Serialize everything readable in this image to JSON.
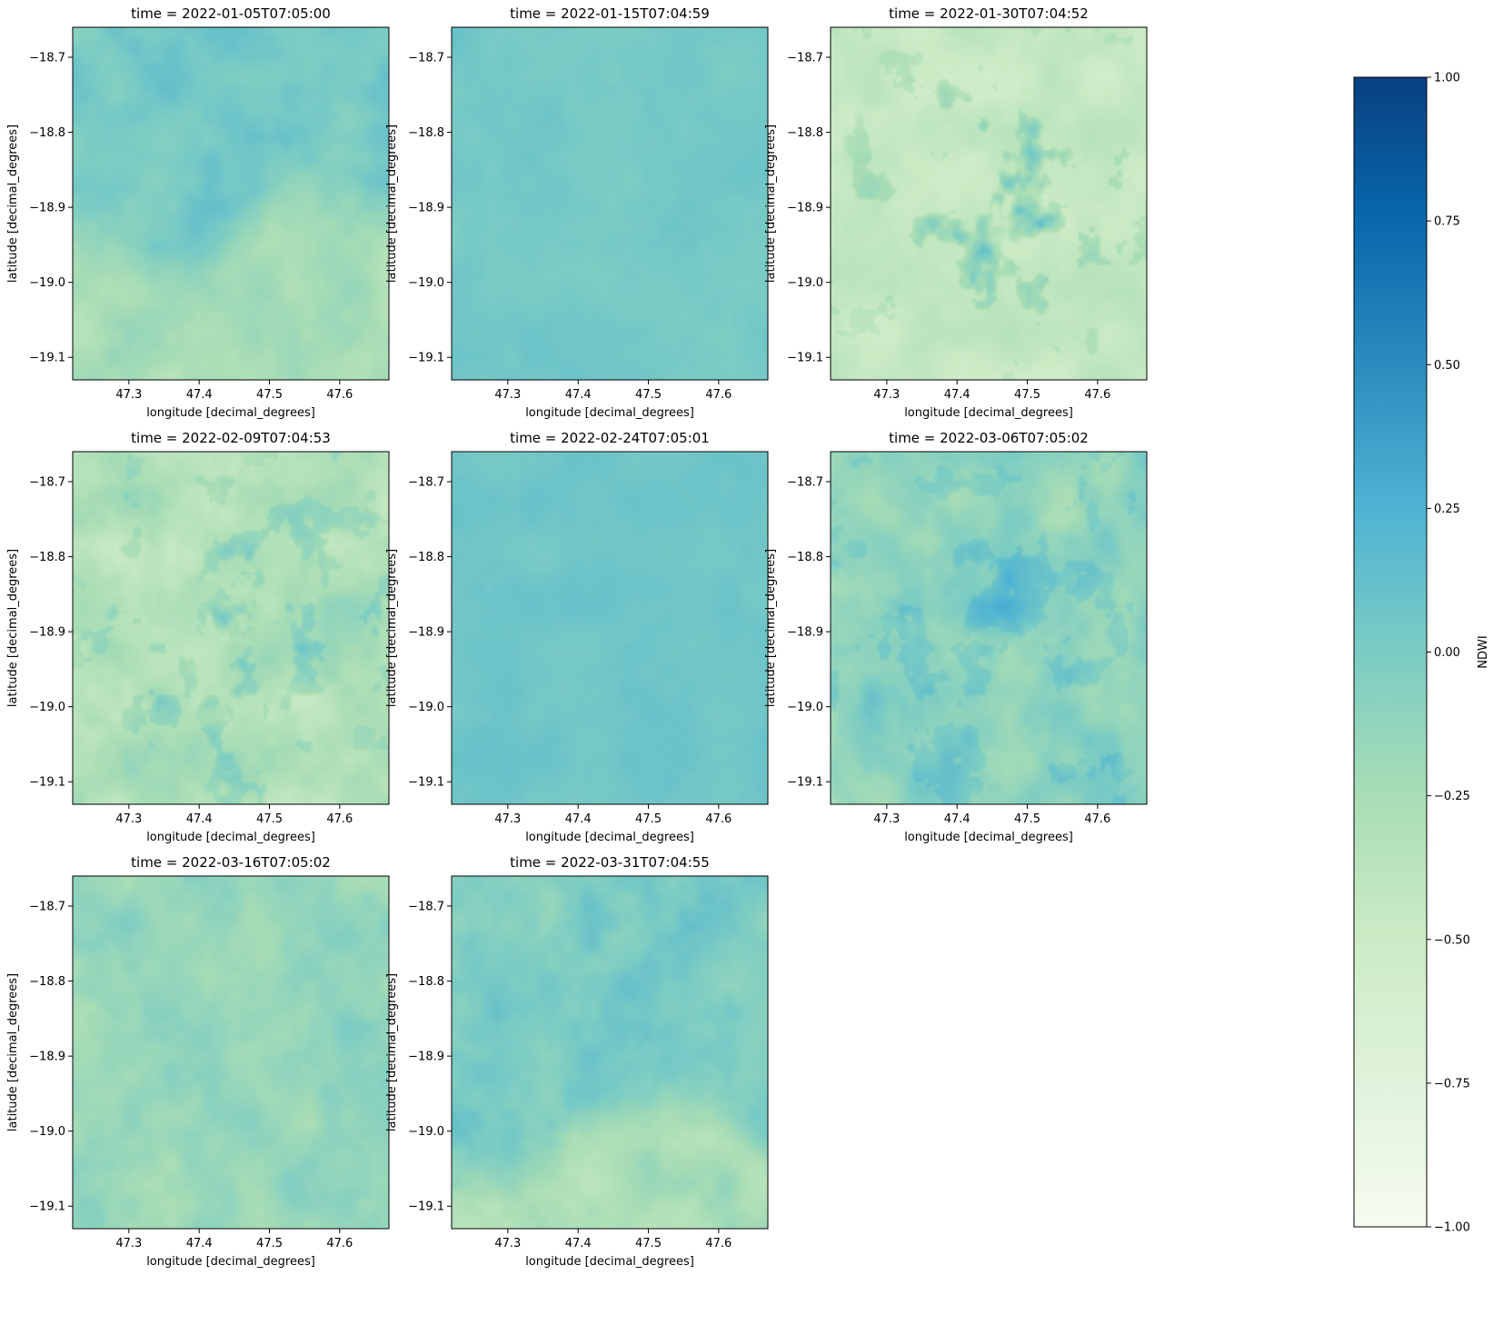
{
  "chart_data": {
    "type": "heatmap",
    "layout": {
      "rows": 3,
      "cols": 3
    },
    "colormap": "GnBu",
    "color_stops": [
      "#f7fcf0",
      "#e0f3db",
      "#ccebc5",
      "#a8ddb5",
      "#7bccc4",
      "#4eb3d3",
      "#2b8cbe",
      "#0868ac",
      "#084081"
    ],
    "xlabel": "longitude [decimal_degrees]",
    "ylabel": "latitude [decimal_degrees]",
    "xlim": [
      47.22,
      47.67
    ],
    "ylim": [
      -19.13,
      -18.66
    ],
    "xticks": [
      47.3,
      47.4,
      47.5,
      47.6
    ],
    "xtick_labels": [
      "47.3",
      "47.4",
      "47.5",
      "47.6"
    ],
    "yticks": [
      -18.7,
      -18.8,
      -18.9,
      -19.0,
      -19.1
    ],
    "ytick_labels": [
      "−18.7",
      "−18.8",
      "−18.9",
      "−19.0",
      "−19.1"
    ],
    "panels": [
      {
        "title": "time = 2022-01-05T07:05:00",
        "base": 0.02,
        "var": 0.1,
        "water": 0.0,
        "split": 0.5
      },
      {
        "title": "time = 2022-01-15T07:04:59",
        "base": 0.04,
        "var": 0.05,
        "water": 0.0,
        "split": 0.0
      },
      {
        "title": "time = 2022-01-30T07:04:52",
        "base": -0.45,
        "var": 0.1,
        "water": 0.75,
        "split": 0.0
      },
      {
        "title": "time = 2022-02-09T07:04:53",
        "base": -0.3,
        "var": 0.15,
        "water": 0.4,
        "split": 0.0
      },
      {
        "title": "time = 2022-02-24T07:05:01",
        "base": 0.06,
        "var": 0.04,
        "water": 0.0,
        "split": 0.0
      },
      {
        "title": "time = 2022-03-06T07:05:02",
        "base": -0.1,
        "var": 0.15,
        "water": 0.15,
        "split": 0.0
      },
      {
        "title": "time = 2022-03-16T07:05:02",
        "base": -0.15,
        "var": 0.12,
        "water": 0.0,
        "split": 0.0
      },
      {
        "title": "time = 2022-03-31T07:04:55",
        "base": 0.0,
        "var": 0.12,
        "water": 0.0,
        "split": 0.65
      }
    ],
    "colorbar": {
      "label": "NDWI",
      "vmin": -1.0,
      "vmax": 1.0,
      "ticks": [
        1.0,
        0.75,
        0.5,
        0.25,
        0.0,
        -0.25,
        -0.5,
        -0.75,
        -1.0
      ],
      "tick_labels": [
        "1.00",
        "0.75",
        "0.50",
        "0.25",
        "0.00",
        "−0.25",
        "−0.50",
        "−0.75",
        "−1.00"
      ]
    }
  }
}
